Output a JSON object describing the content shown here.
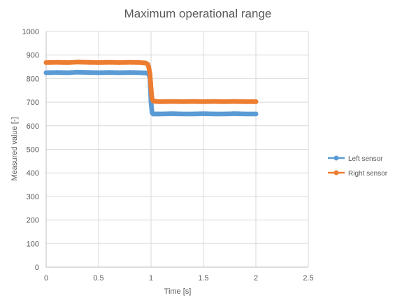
{
  "chart_data": {
    "type": "line",
    "title": "Maximum operational range",
    "xlabel": "Time [s]",
    "ylabel": "Measured value [-]",
    "xlim": [
      0,
      2.5
    ],
    "ylim": [
      0,
      1000
    ],
    "xticks": [
      0,
      0.5,
      1,
      1.5,
      2,
      2.5
    ],
    "xtick_labels": [
      "0",
      "0.5",
      "1",
      "1.5",
      "2",
      "2.5"
    ],
    "yticks": [
      0,
      100,
      200,
      300,
      400,
      500,
      600,
      700,
      800,
      900,
      1000
    ],
    "ytick_labels": [
      "0",
      "100",
      "200",
      "300",
      "400",
      "500",
      "600",
      "700",
      "800",
      "900",
      "1000"
    ],
    "grid": true,
    "legend_position": "right",
    "series": [
      {
        "name": "Left sensor",
        "color": "#5b9bd5",
        "x": [
          0,
          0.1,
          0.2,
          0.3,
          0.4,
          0.5,
          0.6,
          0.7,
          0.8,
          0.9,
          0.95,
          0.98,
          0.99,
          1.0,
          1.01,
          1.02,
          1.05,
          1.1,
          1.2,
          1.3,
          1.4,
          1.5,
          1.6,
          1.7,
          1.8,
          1.9,
          2.0
        ],
        "values": [
          825,
          826,
          825,
          827,
          826,
          825,
          826,
          825,
          826,
          825,
          824,
          820,
          800,
          700,
          655,
          650,
          650,
          650,
          651,
          650,
          650,
          651,
          650,
          650,
          651,
          650,
          650
        ]
      },
      {
        "name": "Right sensor",
        "color": "#ed7d31",
        "x": [
          0,
          0.1,
          0.2,
          0.3,
          0.4,
          0.5,
          0.6,
          0.7,
          0.8,
          0.9,
          0.95,
          0.97,
          0.98,
          0.99,
          1.0,
          1.01,
          1.02,
          1.05,
          1.1,
          1.2,
          1.3,
          1.4,
          1.5,
          1.6,
          1.7,
          1.8,
          1.9,
          2.0
        ],
        "values": [
          868,
          869,
          868,
          870,
          869,
          868,
          869,
          868,
          869,
          868,
          866,
          860,
          845,
          820,
          760,
          715,
          705,
          703,
          702,
          703,
          702,
          703,
          702,
          703,
          702,
          703,
          702,
          702
        ]
      }
    ]
  }
}
